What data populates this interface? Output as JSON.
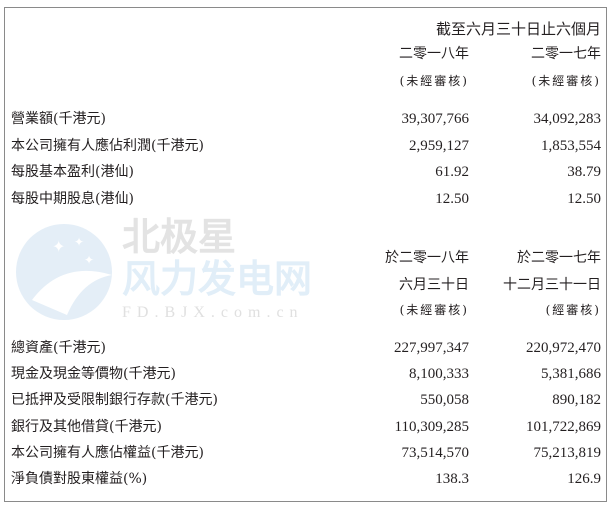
{
  "watermark": {
    "name_gray": "北极星",
    "name_blue": "风力发电网",
    "url": "FD.BJX.com.cn"
  },
  "section1": {
    "period_header": "截至六月三十日止六個月",
    "columns": [
      {
        "year": "二零一八年",
        "note": "(未經審核)"
      },
      {
        "year": "二零一七年",
        "note": "(未經審核)"
      }
    ],
    "rows": [
      {
        "label": "營業額(千港元)",
        "v1": "39,307,766",
        "v2": "34,092,283"
      },
      {
        "label": "本公司擁有人應佔利潤(千港元)",
        "v1": "2,959,127",
        "v2": "1,853,554"
      },
      {
        "label": "每股基本盈利(港仙)",
        "v1": "61.92",
        "v2": "38.79"
      },
      {
        "label": "每股中期股息(港仙)",
        "v1": "12.50",
        "v2": "12.50"
      }
    ]
  },
  "section2": {
    "columns": [
      {
        "line1": "於二零一八年",
        "line2": "六月三十日",
        "note": "(未經審核)"
      },
      {
        "line1": "於二零一七年",
        "line2": "十二月三十一日",
        "note": "(經審核)"
      }
    ],
    "rows": [
      {
        "label": "總資產(千港元)",
        "v1": "227,997,347",
        "v2": "220,972,470"
      },
      {
        "label": "現金及現金等價物(千港元)",
        "v1": "8,100,333",
        "v2": "5,381,686"
      },
      {
        "label": "已抵押及受限制銀行存款(千港元)",
        "v1": "550,058",
        "v2": "890,182"
      },
      {
        "label": "銀行及其他借貸(千港元)",
        "v1": "110,309,285",
        "v2": "101,722,869"
      },
      {
        "label": "本公司擁有人應佔權益(千港元)",
        "v1": "73,514,570",
        "v2": "75,213,819"
      },
      {
        "label": "淨負債對股東權益(%)",
        "v1": "138.3",
        "v2": "126.9"
      }
    ]
  }
}
